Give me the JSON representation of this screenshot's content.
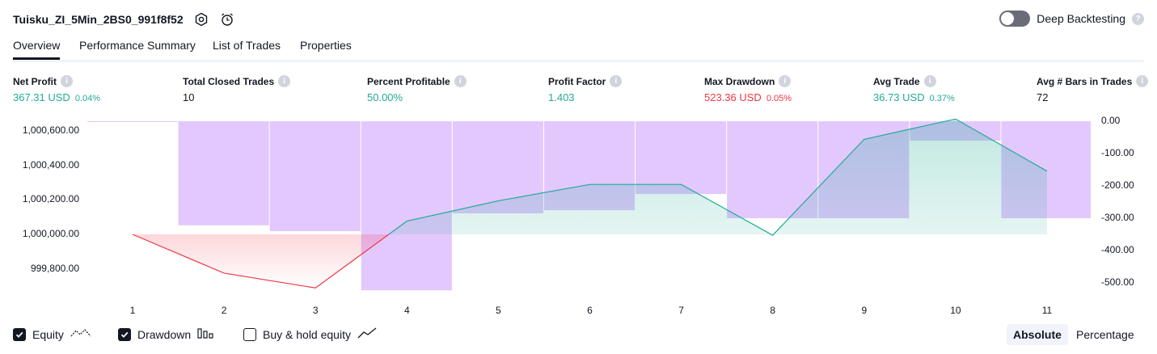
{
  "header": {
    "title": "Tuisku_ZI_5Min_2BS0_991f8f52",
    "deep_backtesting_label": "Deep Backtesting",
    "help_glyph": "?"
  },
  "tabs": [
    {
      "label": "Overview",
      "active": true
    },
    {
      "label": "Performance Summary",
      "active": false
    },
    {
      "label": "List of Trades",
      "active": false
    },
    {
      "label": "Properties",
      "active": false
    }
  ],
  "metrics": [
    {
      "label": "Net Profit",
      "value": "367.31 USD",
      "pct": "0.04%",
      "color": "green"
    },
    {
      "label": "Total Closed Trades",
      "value": "10",
      "pct": "",
      "color": "dark"
    },
    {
      "label": "Percent Profitable",
      "value": "50.00%",
      "pct": "",
      "color": "green"
    },
    {
      "label": "Profit Factor",
      "value": "1.403",
      "pct": "",
      "color": "green"
    },
    {
      "label": "Max Drawdown",
      "value": "523.36 USD",
      "pct": "0.05%",
      "color": "red"
    },
    {
      "label": "Avg Trade",
      "value": "36.73 USD",
      "pct": "0.37%",
      "color": "green"
    },
    {
      "label": "Avg # Bars in Trades",
      "value": "72",
      "pct": "",
      "color": "dark"
    }
  ],
  "colors": {
    "equity_line": "#22ab94",
    "loss_line": "#f23645",
    "drawdown_bar": "#c084fc",
    "positive": "#22ab94",
    "negative": "#f23645"
  },
  "chart_data": {
    "type": "line",
    "x": [
      1,
      2,
      3,
      4,
      5,
      6,
      7,
      8,
      9,
      10,
      11
    ],
    "x_tick_labels": [
      "1",
      "2",
      "3",
      "4",
      "5",
      "6",
      "7",
      "8",
      "9",
      "10",
      "11"
    ],
    "left_ticks": [
      "1,000,600.00",
      "1,000,400.00",
      "1,000,200.00",
      "1,000,000.00",
      "999,800.00"
    ],
    "right_ticks": [
      "0.00",
      "-100.00",
      "-200.00",
      "-300.00",
      "-400.00",
      "-500.00"
    ],
    "series": [
      {
        "name": "Equity",
        "axis": "left",
        "values": [
          1000000,
          999775,
          999689,
          1000077,
          1000195,
          1000290,
          1000290,
          999995,
          1000552,
          1000670,
          1000367
        ]
      },
      {
        "name": "Drawdown",
        "axis": "right",
        "type": "bar",
        "values": [
          0,
          -322,
          -340,
          -523,
          -285,
          -275,
          -225,
          -300,
          -300,
          -60,
          -300
        ]
      }
    ],
    "ylim_left": [
      999760,
      1000600
    ],
    "ylim_right": [
      -500,
      0
    ],
    "grid": false
  },
  "legend": [
    {
      "label": "Equity",
      "checked": true,
      "icon": "equity-line-icon"
    },
    {
      "label": "Drawdown",
      "checked": true,
      "icon": "drawdown-bars-icon"
    },
    {
      "label": "Buy & hold equity",
      "checked": false,
      "icon": "buy-hold-line-icon"
    }
  ],
  "modes": [
    {
      "label": "Absolute",
      "selected": true
    },
    {
      "label": "Percentage",
      "selected": false
    }
  ]
}
